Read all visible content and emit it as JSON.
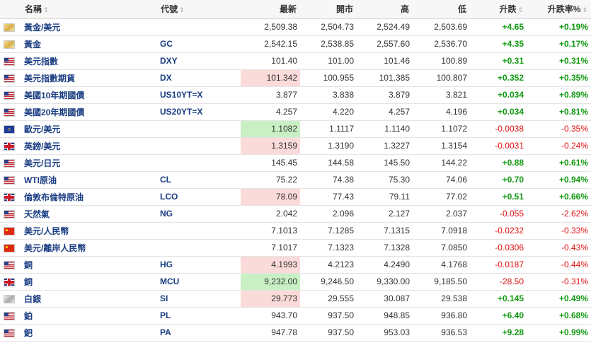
{
  "header": {
    "name": "名稱",
    "code": "代號",
    "last": "最新",
    "open": "開市",
    "high": "高",
    "low": "低",
    "change": "升跌",
    "pct": "升跌率%",
    "sort_glyph": "⇕"
  },
  "colors": {
    "up": "#119911",
    "down": "#e01010",
    "link": "#1a3d82",
    "hl_down": "#fbdada",
    "hl_up": "#c9f0c4"
  },
  "rows": [
    {
      "flag": "gold-icon",
      "name": "黃金/美元",
      "code": "",
      "last": "2,509.38",
      "open": "2,504.73",
      "high": "2,524.49",
      "low": "2,503.69",
      "change": "+4.65",
      "pct": "+0.19%",
      "dir": "up",
      "hl": ""
    },
    {
      "flag": "gold-icon",
      "name": "黃金",
      "code": "GC",
      "last": "2,542.15",
      "open": "2,538.85",
      "high": "2,557.60",
      "low": "2,536.70",
      "change": "+4.35",
      "pct": "+0.17%",
      "dir": "up",
      "hl": ""
    },
    {
      "flag": "us-flag-icon",
      "name": "美元指數",
      "code": "DXY",
      "last": "101.40",
      "open": "101.00",
      "high": "101.46",
      "low": "100.89",
      "change": "+0.31",
      "pct": "+0.31%",
      "dir": "up",
      "hl": ""
    },
    {
      "flag": "us-flag-icon",
      "name": "美元指數期貨",
      "code": "DX",
      "last": "101.342",
      "open": "100.955",
      "high": "101.385",
      "low": "100.807",
      "change": "+0.352",
      "pct": "+0.35%",
      "dir": "up",
      "hl": "down"
    },
    {
      "flag": "us-flag-icon",
      "name": "美國10年期國債",
      "code": "US10YT=X",
      "last": "3.877",
      "open": "3.838",
      "high": "3.879",
      "low": "3.821",
      "change": "+0.034",
      "pct": "+0.89%",
      "dir": "up",
      "hl": ""
    },
    {
      "flag": "us-flag-icon",
      "name": "美國20年期國債",
      "code": "US20YT=X",
      "last": "4.257",
      "open": "4.220",
      "high": "4.257",
      "low": "4.196",
      "change": "+0.034",
      "pct": "+0.81%",
      "dir": "up",
      "hl": ""
    },
    {
      "flag": "eu-flag-icon",
      "name": "歐元/美元",
      "code": "",
      "last": "1.1082",
      "open": "1.1117",
      "high": "1.1140",
      "low": "1.1072",
      "change": "-0.0038",
      "pct": "-0.35%",
      "dir": "down",
      "hl": "up"
    },
    {
      "flag": "uk-flag-icon",
      "name": "英鎊/美元",
      "code": "",
      "last": "1.3159",
      "open": "1.3190",
      "high": "1.3227",
      "low": "1.3154",
      "change": "-0.0031",
      "pct": "-0.24%",
      "dir": "down",
      "hl": "down"
    },
    {
      "flag": "us-flag-icon",
      "name": "美元/日元",
      "code": "",
      "last": "145.45",
      "open": "144.58",
      "high": "145.50",
      "low": "144.22",
      "change": "+0.88",
      "pct": "+0.61%",
      "dir": "up",
      "hl": ""
    },
    {
      "flag": "us-flag-icon",
      "name": "WTI原油",
      "code": "CL",
      "last": "75.22",
      "open": "74.38",
      "high": "75.30",
      "low": "74.06",
      "change": "+0.70",
      "pct": "+0.94%",
      "dir": "up",
      "hl": ""
    },
    {
      "flag": "uk-flag-icon",
      "name": "倫敦布倫特原油",
      "code": "LCO",
      "last": "78.09",
      "open": "77.43",
      "high": "79.11",
      "low": "77.02",
      "change": "+0.51",
      "pct": "+0.66%",
      "dir": "up",
      "hl": "down"
    },
    {
      "flag": "us-flag-icon",
      "name": "天然氣",
      "code": "NG",
      "last": "2.042",
      "open": "2.096",
      "high": "2.127",
      "low": "2.037",
      "change": "-0.055",
      "pct": "-2.62%",
      "dir": "down",
      "hl": ""
    },
    {
      "flag": "cn-flag-icon",
      "name": "美元/人民幣",
      "code": "",
      "last": "7.1013",
      "open": "7.1285",
      "high": "7.1315",
      "low": "7.0918",
      "change": "-0.0232",
      "pct": "-0.33%",
      "dir": "down",
      "hl": ""
    },
    {
      "flag": "cn-flag-icon",
      "name": "美元/離岸人民幣",
      "code": "",
      "last": "7.1017",
      "open": "7.1323",
      "high": "7.1328",
      "low": "7.0850",
      "change": "-0.0306",
      "pct": "-0.43%",
      "dir": "down",
      "hl": ""
    },
    {
      "flag": "us-flag-icon",
      "name": "銅",
      "code": "HG",
      "last": "4.1993",
      "open": "4.2123",
      "high": "4.2490",
      "low": "4.1768",
      "change": "-0.0187",
      "pct": "-0.44%",
      "dir": "down",
      "hl": "down"
    },
    {
      "flag": "uk-flag-icon",
      "name": "銅",
      "code": "MCU",
      "last": "9,232.00",
      "open": "9,246.50",
      "high": "9,330.00",
      "low": "9,185.50",
      "change": "-28.50",
      "pct": "-0.31%",
      "dir": "down",
      "hl": "up"
    },
    {
      "flag": "silver-icon",
      "name": "白銀",
      "code": "SI",
      "last": "29.773",
      "open": "29.555",
      "high": "30.087",
      "low": "29.538",
      "change": "+0.145",
      "pct": "+0.49%",
      "dir": "up",
      "hl": "down"
    },
    {
      "flag": "us-flag-icon",
      "name": "鉑",
      "code": "PL",
      "last": "943.70",
      "open": "937.50",
      "high": "948.85",
      "low": "936.80",
      "change": "+6.40",
      "pct": "+0.68%",
      "dir": "up",
      "hl": ""
    },
    {
      "flag": "us-flag-icon",
      "name": "鈀",
      "code": "PA",
      "last": "947.78",
      "open": "937.50",
      "high": "953.03",
      "low": "936.53",
      "change": "+9.28",
      "pct": "+0.99%",
      "dir": "up",
      "hl": ""
    }
  ]
}
